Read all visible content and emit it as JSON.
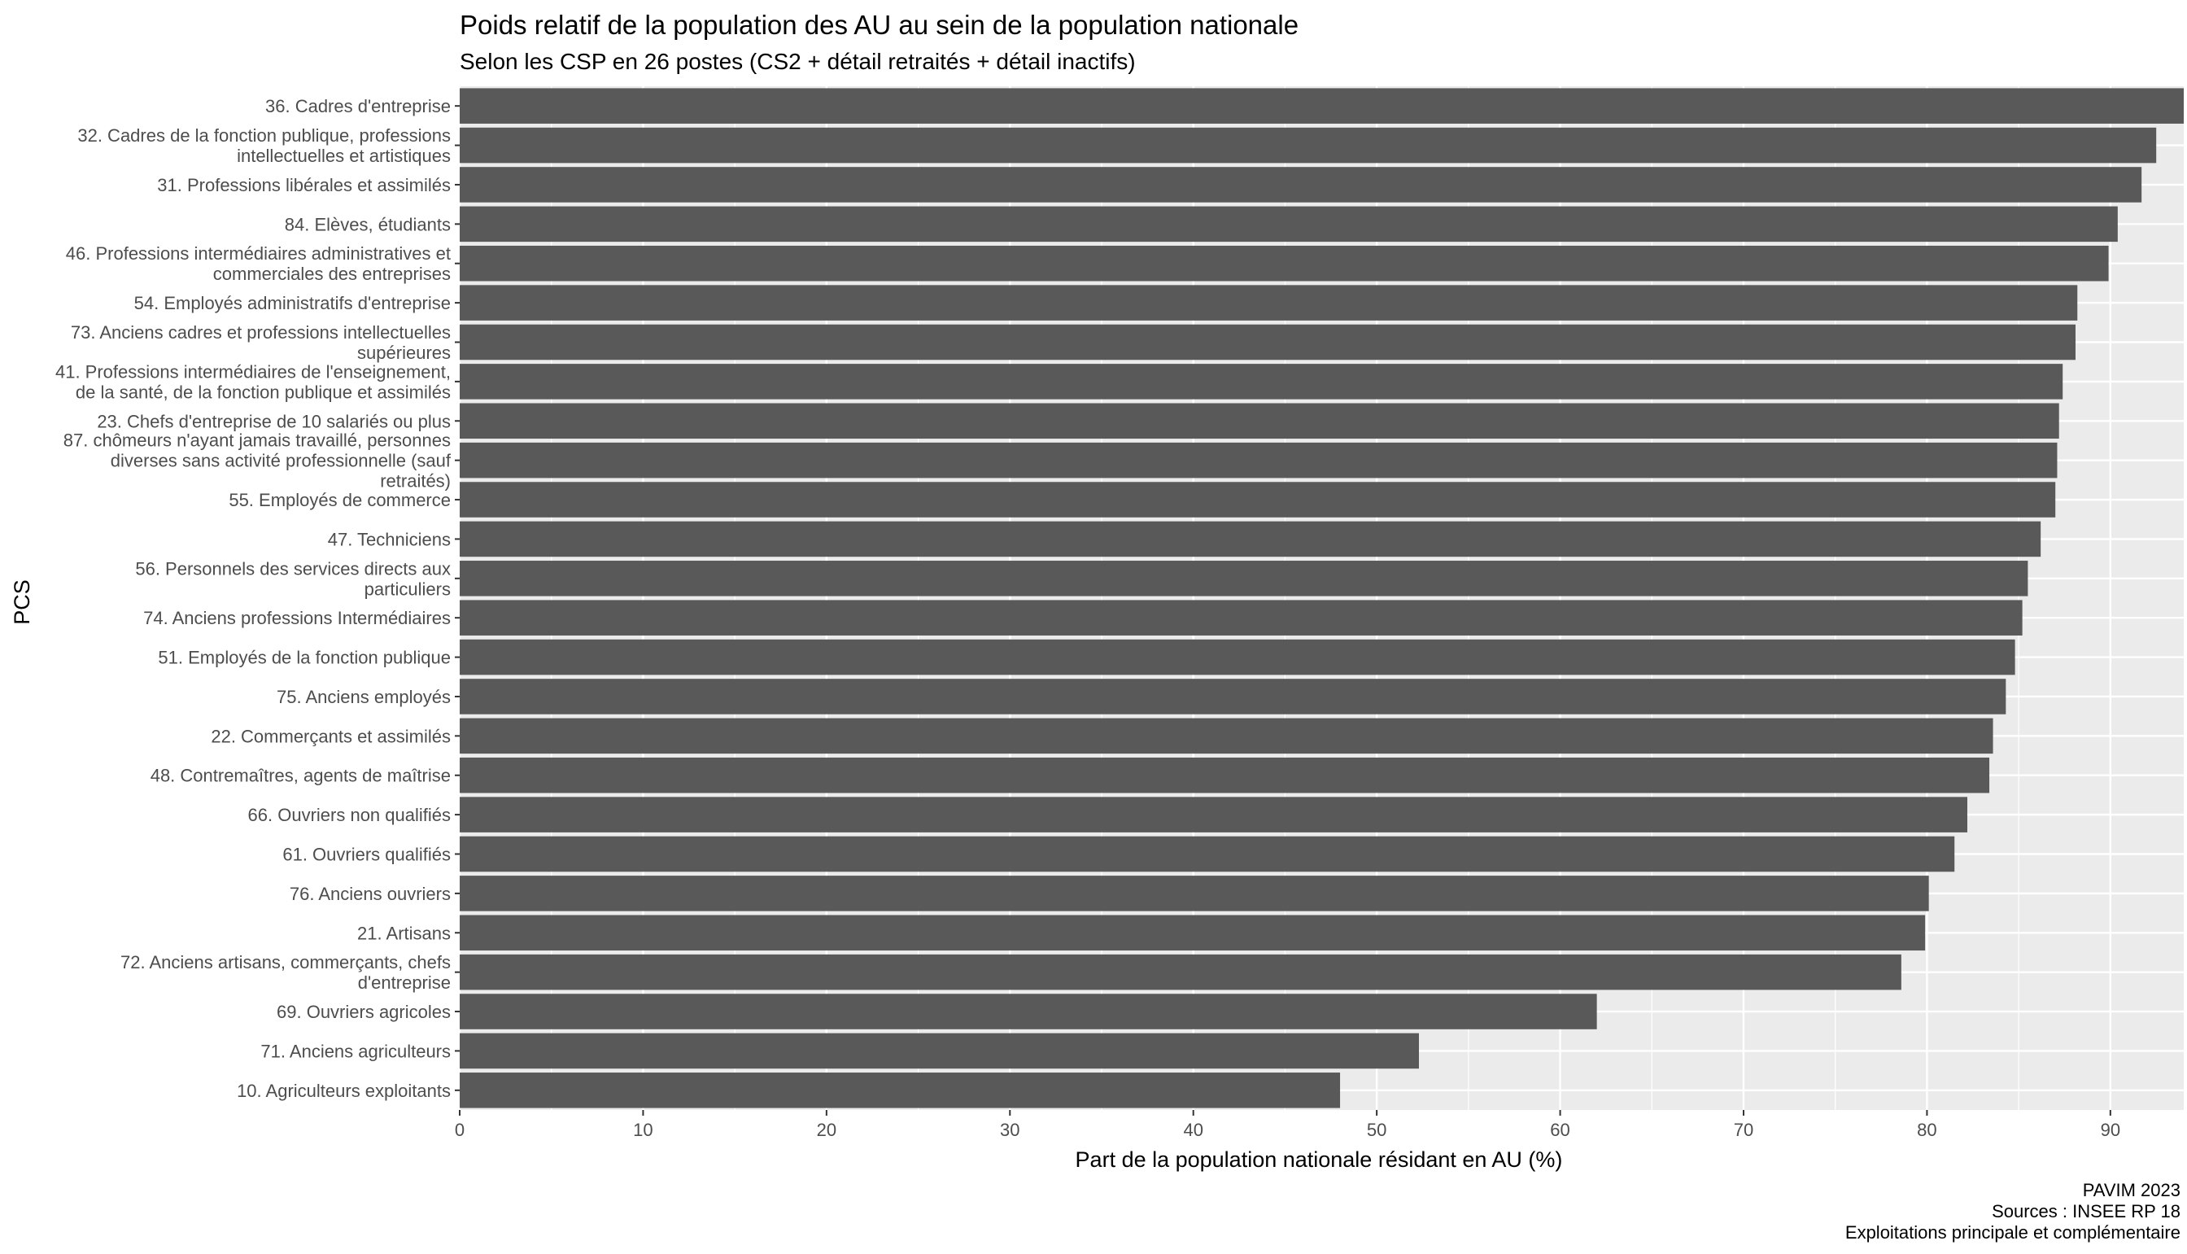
{
  "chart_data": {
    "type": "bar",
    "orientation": "horizontal",
    "title": "Poids relatif de la population des AU au sein de la population nationale",
    "subtitle": "Selon les CSP en 26 postes (CS2 + détail retraités + détail inactifs)",
    "xlabel": "Part de la population nationale résidant en AU (%)",
    "ylabel": "PCS",
    "xlim": [
      0,
      94
    ],
    "xticks": [
      0,
      10,
      20,
      30,
      40,
      50,
      60,
      70,
      80,
      90
    ],
    "grid": true,
    "bar_color": "#595959",
    "panel_color": "#ebebeb",
    "categories": [
      [
        "36. Cadres d'entreprise"
      ],
      [
        "32. Cadres de la fonction publique, professions",
        "intellectuelles et artistiques"
      ],
      [
        "31. Professions libérales et assimilés"
      ],
      [
        "84. Elèves, étudiants"
      ],
      [
        "46. Professions intermédiaires administratives et",
        "commerciales des entreprises"
      ],
      [
        "54. Employés administratifs d'entreprise"
      ],
      [
        "73. Anciens cadres et professions intellectuelles",
        "supérieures"
      ],
      [
        "41. Professions intermédiaires de l'enseignement,",
        "de la santé, de la fonction publique et assimilés"
      ],
      [
        "23. Chefs d'entreprise de 10 salariés ou plus"
      ],
      [
        "87. chômeurs n'ayant jamais travaillé, personnes",
        "diverses sans activité professionnelle (sauf",
        "retraités)"
      ],
      [
        "55. Employés de commerce"
      ],
      [
        "47. Techniciens"
      ],
      [
        "56. Personnels des services directs aux",
        "particuliers"
      ],
      [
        "74. Anciens professions Intermédiaires"
      ],
      [
        "51. Employés de la fonction publique"
      ],
      [
        "75. Anciens employés"
      ],
      [
        "22. Commerçants et assimilés"
      ],
      [
        "48. Contremaîtres, agents de maîtrise"
      ],
      [
        "66. Ouvriers non qualifiés"
      ],
      [
        "61. Ouvriers qualifiés"
      ],
      [
        "76. Anciens ouvriers"
      ],
      [
        "21. Artisans"
      ],
      [
        "72. Anciens artisans, commerçants, chefs",
        "d'entreprise"
      ],
      [
        "69. Ouvriers agricoles"
      ],
      [
        "71. Anciens agriculteurs"
      ],
      [
        "10. Agriculteurs exploitants"
      ]
    ],
    "values": [
      94.0,
      92.5,
      91.7,
      90.4,
      89.9,
      88.2,
      88.1,
      87.4,
      87.2,
      87.1,
      87.0,
      86.2,
      85.5,
      85.2,
      84.8,
      84.3,
      83.6,
      83.4,
      82.2,
      81.5,
      80.1,
      79.9,
      78.6,
      62.0,
      52.3,
      48.0
    ]
  },
  "caption": {
    "line1": "PAVIM 2023",
    "line2": "Sources : INSEE RP 18",
    "line3": "Exploitations principale et complémentaire"
  }
}
